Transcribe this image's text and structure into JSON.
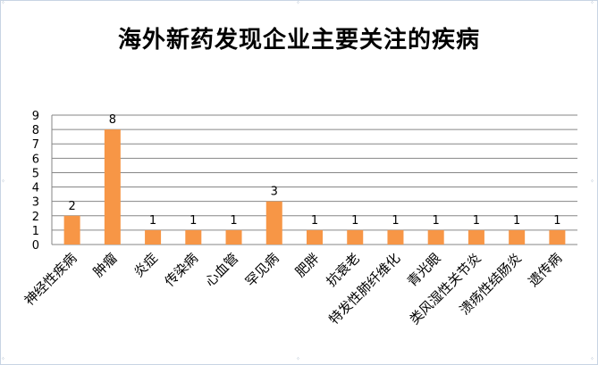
{
  "chart_data": {
    "type": "bar",
    "title": "海外新药发现企业主要关注的疾病",
    "xlabel": "",
    "ylabel": "",
    "categories": [
      "神经性疾病",
      "肿瘤",
      "炎症",
      "传染病",
      "心血管",
      "罕见病",
      "肥胖",
      "抗衰老",
      "特发性肺纤维化",
      "青光眼",
      "类风湿性关节炎",
      "溃疡性结肠炎",
      "遗传病"
    ],
    "values": [
      2,
      8,
      1,
      1,
      1,
      3,
      1,
      1,
      1,
      1,
      1,
      1,
      1
    ],
    "ylim": [
      0,
      9
    ],
    "yticks": [
      0,
      1,
      2,
      3,
      4,
      5,
      6,
      7,
      8,
      9
    ],
    "grid": true,
    "legend": "none",
    "bar_color": "#f79646",
    "grid_color": "#868686"
  }
}
